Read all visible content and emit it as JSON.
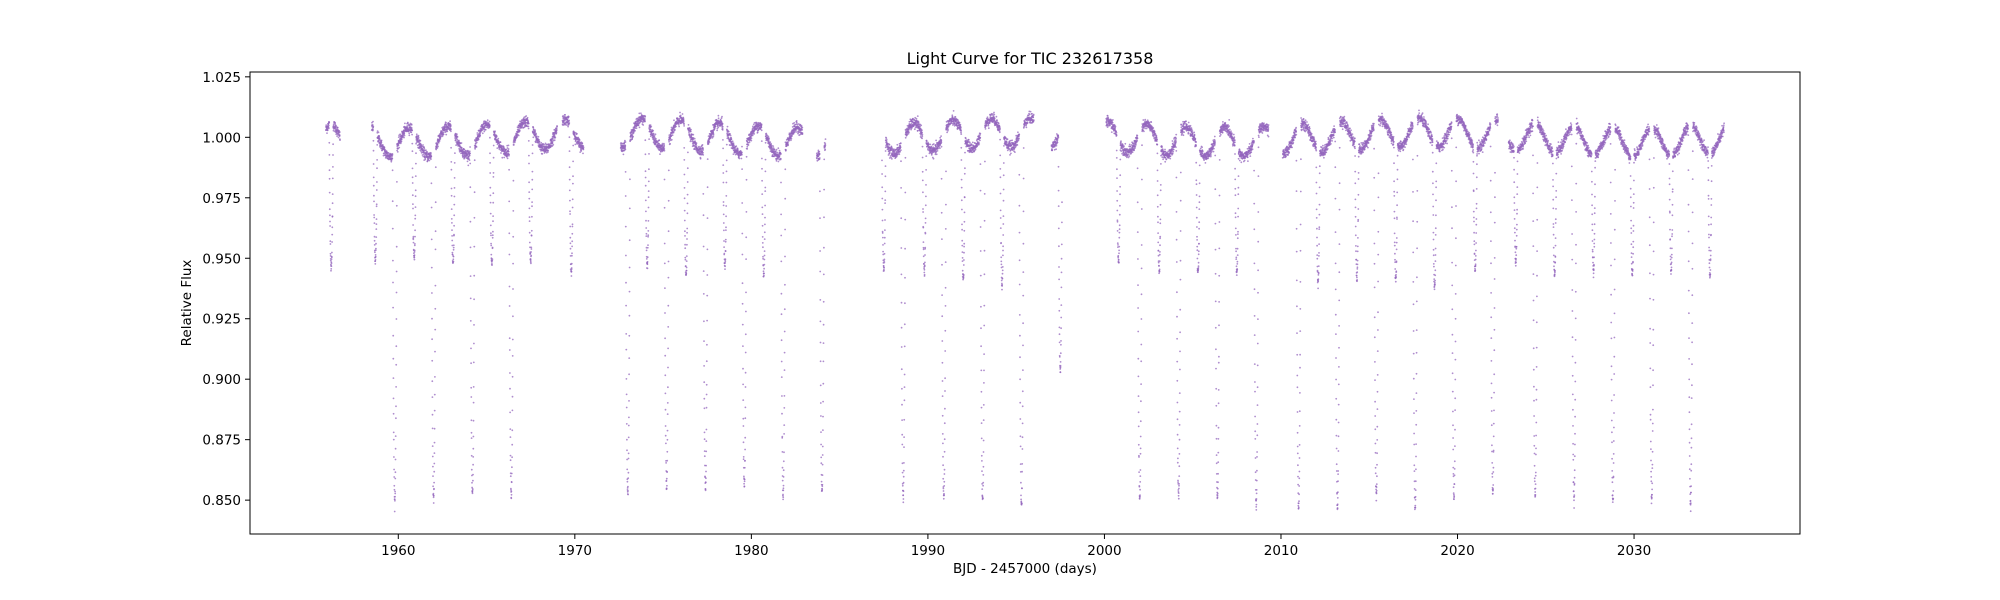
{
  "chart_data": {
    "type": "scatter",
    "title": "Light Curve for TIC 232617358",
    "xlabel": "BJD - 2457000 (days)",
    "ylabel": "Relative Flux",
    "xlim": [
      1951.6,
      2039.4
    ],
    "ylim": [
      0.836,
      1.027
    ],
    "xticks": [
      1960,
      1970,
      1980,
      1990,
      2000,
      2010,
      2020,
      2030
    ],
    "yticks": [
      0.85,
      0.875,
      0.9,
      0.925,
      0.95,
      0.975,
      1.0,
      1.025
    ],
    "xtick_labels": [
      "1960",
      "1970",
      "1980",
      "1990",
      "2000",
      "2010",
      "2020",
      "2030"
    ],
    "ytick_labels": [
      "0.850",
      "0.875",
      "0.900",
      "0.925",
      "0.950",
      "0.975",
      "1.000",
      "1.025"
    ],
    "grid": false,
    "marker_color": "#9467bd",
    "series": [
      {
        "segments": [
          [
            1955.9,
            1956.7
          ],
          [
            1958.5,
            1969.0
          ],
          [
            1969.3,
            1970.5
          ],
          [
            1972.6,
            1982.9
          ],
          [
            1983.7,
            1984.2
          ],
          [
            1987.4,
            1996.0
          ],
          [
            1997.0,
            1997.6
          ],
          [
            2000.1,
            2009.3
          ],
          [
            2010.1,
            2022.3
          ],
          [
            2022.9,
            2035.1
          ]
        ],
        "primary_eclipses": {
          "times": [
            1959.8,
            1962.0,
            1964.2,
            1966.4,
            1973.0,
            1975.2,
            1977.4,
            1979.6,
            1981.8,
            1984.0,
            1988.6,
            1990.9,
            1993.1,
            1995.3,
            2002.0,
            2004.2,
            2006.4,
            2008.6,
            2011.0,
            2013.2,
            2015.4,
            2017.6,
            2019.8,
            2022.0,
            2024.4,
            2026.6,
            2028.8,
            2031.0,
            2033.2
          ],
          "depth_flux": [
            0.849,
            0.851,
            0.852,
            0.852,
            0.853,
            0.855,
            0.855,
            0.856,
            0.852,
            0.853,
            0.851,
            0.851,
            0.85,
            0.847,
            0.85,
            0.851,
            0.85,
            0.848,
            0.847,
            0.847,
            0.851,
            0.846,
            0.851,
            0.853,
            0.852,
            0.85,
            0.85,
            0.85,
            0.848
          ]
        },
        "secondary_eclipses": {
          "times": [
            1956.2,
            1958.7,
            1960.9,
            1963.1,
            1965.3,
            1967.5,
            1969.8,
            1974.1,
            1976.3,
            1978.5,
            1980.7,
            1987.5,
            1989.8,
            1992.0,
            1994.2,
            1997.5,
            2000.8,
            2003.1,
            2005.3,
            2007.5,
            2009.9,
            2012.1,
            2014.3,
            2016.5,
            2018.7,
            2021.0,
            2023.3,
            2025.5,
            2027.7,
            2029.9,
            2032.1,
            2034.3
          ],
          "depth_flux": [
            0.946,
            0.949,
            0.95,
            0.948,
            0.948,
            0.948,
            0.944,
            0.947,
            0.943,
            0.946,
            0.943,
            0.945,
            0.944,
            0.942,
            0.939,
            0.903,
            0.949,
            0.944,
            0.944,
            0.944,
            0.945,
            0.94,
            0.942,
            0.941,
            0.938,
            0.945,
            0.948,
            0.943,
            0.944,
            0.943,
            0.945,
            0.943
          ]
        },
        "baseline_flux": 1.0,
        "spot_modulation_amplitude": 0.006
      }
    ]
  }
}
